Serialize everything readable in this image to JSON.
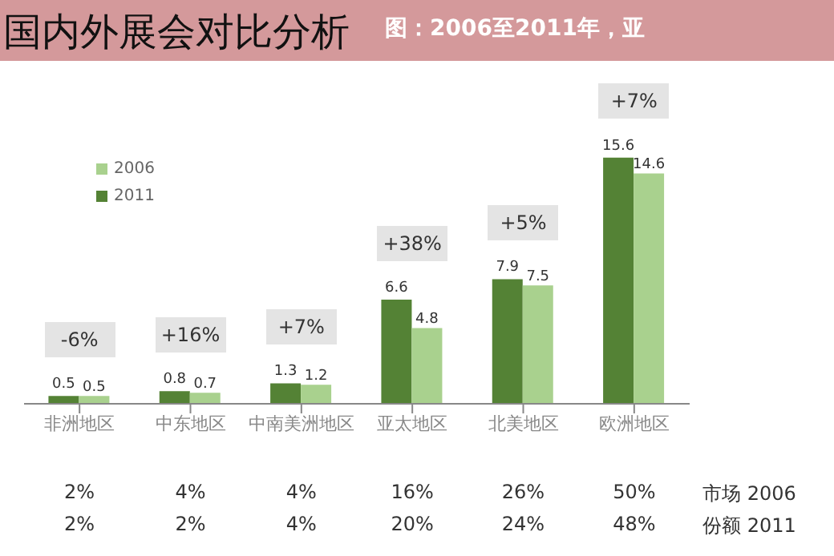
{
  "chart_data": {
    "type": "bar",
    "title": "国内外展会对比分析",
    "subtitle": "图：2006至2011年，亚",
    "categories": [
      "非洲地区",
      "中东地区",
      "中南美洲地区",
      "亚太地区",
      "北美地区",
      "欧洲地区"
    ],
    "series": [
      {
        "name": "2011",
        "color": "#548235",
        "values": [
          0.5,
          0.8,
          1.3,
          6.6,
          7.9,
          15.6
        ]
      },
      {
        "name": "2006",
        "color": "#a9d18e",
        "values": [
          0.5,
          0.7,
          1.2,
          4.8,
          7.5,
          14.6
        ]
      }
    ],
    "data_labels": true,
    "legend": "top left",
    "grid": false,
    "annotations": [
      "-6%",
      "+16%",
      "+7%",
      "+38%",
      "+5%",
      "+7%",
      "市场 2006",
      "2%",
      "4%",
      "4%",
      "16%",
      "26%",
      "50%",
      "份额 2011",
      "2%",
      "2%",
      "4%",
      "20%",
      "24%",
      "48%"
    ]
  }
}
